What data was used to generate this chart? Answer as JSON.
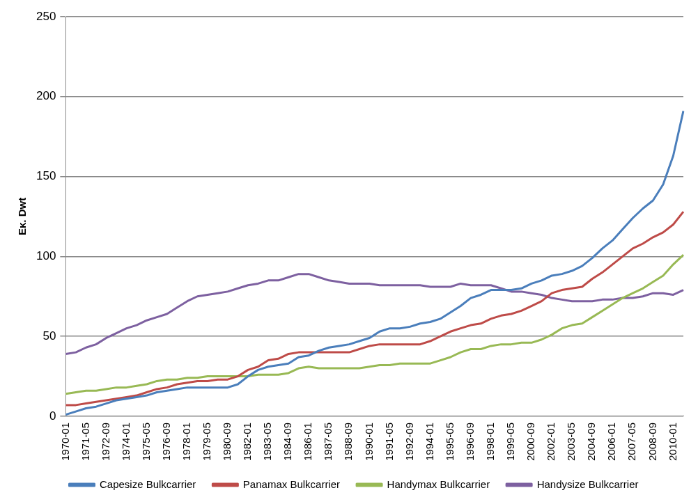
{
  "chart_data": {
    "type": "line",
    "ylabel": "Εκ. Dwt",
    "categories": [
      "1970-01",
      null,
      "1971-05",
      null,
      "1972-09",
      null,
      "1974-01",
      null,
      "1975-05",
      null,
      "1976-09",
      null,
      "1978-01",
      null,
      "1979-05",
      null,
      "1980-09",
      null,
      "1982-01",
      null,
      "1983-05",
      null,
      "1984-09",
      null,
      "1986-01",
      null,
      "1987-05",
      null,
      "1988-09",
      null,
      "1990-01",
      null,
      "1991-05",
      null,
      "1992-09",
      null,
      "1994-01",
      null,
      "1995-05",
      null,
      "1996-09",
      null,
      "1998-01",
      null,
      "1999-05",
      null,
      "2000-09",
      null,
      "2002-01",
      null,
      "2003-05",
      null,
      "2004-09",
      null,
      "2006-01",
      null,
      "2007-05",
      null,
      "2008-09",
      null,
      "2010-01",
      null
    ],
    "series": [
      {
        "name": "Capesize Bulkcarrier",
        "color": "#4a7ebb",
        "values": [
          1,
          3,
          5,
          6,
          8,
          10,
          11,
          12,
          13,
          15,
          16,
          17,
          18,
          18,
          18,
          18,
          18,
          20,
          25,
          29,
          31,
          32,
          33,
          37,
          38,
          41,
          43,
          44,
          45,
          47,
          49,
          53,
          55,
          55,
          56,
          58,
          59,
          61,
          65,
          69,
          74,
          76,
          79,
          79,
          79,
          80,
          83,
          85,
          88,
          89,
          91,
          94,
          99,
          105,
          110,
          117,
          124,
          130,
          135,
          145,
          163,
          191
        ]
      },
      {
        "name": "Panamax Bulkcarrier",
        "color": "#be4b48",
        "values": [
          7,
          7,
          8,
          9,
          10,
          11,
          12,
          13,
          15,
          17,
          18,
          20,
          21,
          22,
          22,
          23,
          23,
          25,
          29,
          31,
          35,
          36,
          39,
          40,
          40,
          40,
          40,
          40,
          40,
          42,
          44,
          45,
          45,
          45,
          45,
          45,
          47,
          50,
          53,
          55,
          57,
          58,
          61,
          63,
          64,
          66,
          69,
          72,
          77,
          79,
          80,
          81,
          86,
          90,
          95,
          100,
          105,
          108,
          112,
          115,
          120,
          128
        ]
      },
      {
        "name": "Handymax Bulkcarrier",
        "color": "#98b954",
        "values": [
          14,
          15,
          16,
          16,
          17,
          18,
          18,
          19,
          20,
          22,
          23,
          23,
          24,
          24,
          25,
          25,
          25,
          25,
          25,
          26,
          26,
          26,
          27,
          30,
          31,
          30,
          30,
          30,
          30,
          30,
          31,
          32,
          32,
          33,
          33,
          33,
          33,
          35,
          37,
          40,
          42,
          42,
          44,
          45,
          45,
          46,
          46,
          48,
          51,
          55,
          57,
          58,
          62,
          66,
          70,
          74,
          77,
          80,
          84,
          88,
          95,
          101
        ]
      },
      {
        "name": "Handysize Bulkcarrier",
        "color": "#7d60a0",
        "values": [
          39,
          40,
          43,
          45,
          49,
          52,
          55,
          57,
          60,
          62,
          64,
          68,
          72,
          75,
          76,
          77,
          78,
          80,
          82,
          83,
          85,
          85,
          87,
          89,
          89,
          87,
          85,
          84,
          83,
          83,
          83,
          82,
          82,
          82,
          82,
          82,
          81,
          81,
          81,
          83,
          82,
          82,
          82,
          80,
          78,
          78,
          77,
          76,
          74,
          73,
          72,
          72,
          72,
          73,
          73,
          74,
          74,
          75,
          77,
          77,
          76,
          79
        ]
      }
    ],
    "ylim": [
      0,
      250
    ],
    "yticks": [
      0,
      50,
      100,
      150,
      200,
      250
    ],
    "grid": "y",
    "legend": "bottom"
  }
}
